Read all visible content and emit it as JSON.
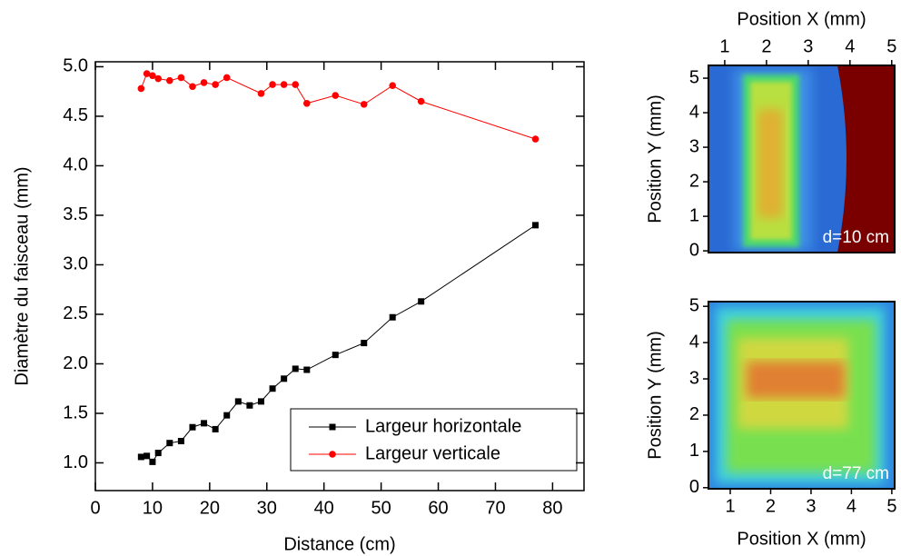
{
  "chart_data": [
    {
      "type": "line",
      "xlabel": "Distance (cm)",
      "ylabel": "Diamètre du faisceau (mm)",
      "xlim": [
        0,
        85.5
      ],
      "ylim": [
        0.72,
        5.05
      ],
      "xticks": [
        0,
        10,
        20,
        30,
        40,
        50,
        60,
        70,
        80
      ],
      "yticks": [
        {
          "value": 1,
          "label": "1.0"
        },
        1.5,
        {
          "value": 2,
          "label": "2.0"
        },
        2.5,
        {
          "value": 3,
          "label": "3.0"
        },
        3.5,
        {
          "value": 4,
          "label": "4.0"
        },
        4.5,
        {
          "value": 5,
          "label": "5.0"
        }
      ],
      "legend": "lower right",
      "series": [
        {
          "name": "Largeur horizontale",
          "color": "#000000",
          "marker": "square",
          "x": [
            8,
            9,
            10,
            11,
            13,
            15,
            17,
            19,
            21,
            23,
            25,
            27,
            29,
            31,
            33,
            35,
            37,
            42,
            47,
            52,
            57,
            77
          ],
          "values": [
            1.06,
            1.07,
            1.01,
            1.1,
            1.2,
            1.22,
            1.36,
            1.4,
            1.34,
            1.48,
            1.62,
            1.58,
            1.62,
            1.75,
            1.85,
            1.95,
            1.94,
            2.09,
            2.21,
            2.47,
            2.63,
            3.4
          ]
        },
        {
          "name": "Largeur verticale",
          "color": "#ff0000",
          "marker": "circle",
          "x": [
            8,
            9,
            10,
            11,
            13,
            15,
            17,
            19,
            21,
            23,
            29,
            31,
            33,
            35,
            37,
            42,
            47,
            52,
            57,
            77
          ],
          "values": [
            4.78,
            4.93,
            4.91,
            4.88,
            4.86,
            4.89,
            4.8,
            4.84,
            4.82,
            4.89,
            4.73,
            4.82,
            4.82,
            4.82,
            4.63,
            4.71,
            4.62,
            4.81,
            4.65,
            4.27
          ]
        }
      ]
    },
    {
      "type": "image",
      "xlabel": "Position X (mm)",
      "ylabel": "Position Y (mm)",
      "annotation": "d=10 cm",
      "xaxis": "top",
      "xlim": [
        0.61,
        5.07
      ],
      "ylim": [
        -0.05,
        5.37
      ],
      "xticks": [
        1,
        2,
        3,
        4,
        5
      ],
      "yticks": [
        0,
        1,
        2,
        3,
        4,
        5
      ]
    },
    {
      "type": "image",
      "xlabel": "Position X (mm)",
      "ylabel": "Position Y (mm)",
      "annotation": "d=77 cm",
      "xaxis": "bottom",
      "xlim": [
        0.46,
        5.07
      ],
      "ylim": [
        -0.03,
        5.13
      ],
      "xticks": [
        1,
        2,
        3,
        4,
        5
      ],
      "yticks": [
        0,
        1,
        2,
        3,
        4,
        5
      ]
    }
  ]
}
